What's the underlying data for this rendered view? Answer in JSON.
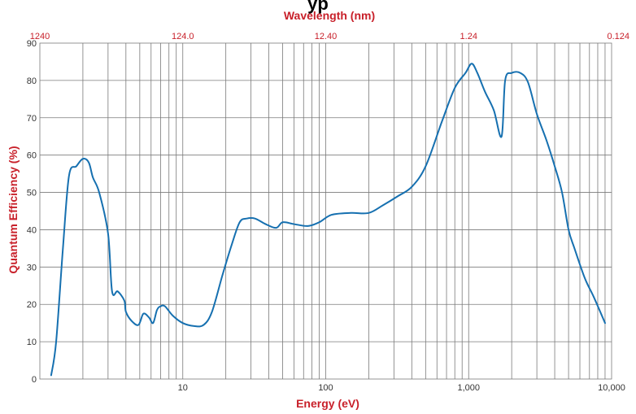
{
  "chart_data": {
    "type": "line",
    "title_visible": "yp",
    "xlabel": "Energy (eV)",
    "x2label": "Wavelength (nm)",
    "ylabel": "Quantum Efficiency (%)",
    "x_scale": "log",
    "xlim": [
      1,
      10000
    ],
    "ylim": [
      0,
      90
    ],
    "grid": true,
    "x_ticks": [
      {
        "value": 10,
        "label": "10"
      },
      {
        "value": 100,
        "label": "100"
      },
      {
        "value": 1000,
        "label": "1,000"
      },
      {
        "value": 10000,
        "label": "10,000"
      }
    ],
    "x2_ticks": [
      {
        "value": 1,
        "label": "1240"
      },
      {
        "value": 10,
        "label": "124.0"
      },
      {
        "value": 100,
        "label": "12.40"
      },
      {
        "value": 1000,
        "label": "1.24"
      },
      {
        "value": 10000,
        "label": "0.124"
      }
    ],
    "y_ticks": [
      0,
      10,
      20,
      30,
      40,
      50,
      60,
      70,
      80,
      90
    ],
    "series": [
      {
        "color": "#1670b0",
        "x": [
          1.2,
          1.3,
          1.45,
          1.6,
          1.8,
          2.0,
          2.2,
          2.35,
          2.6,
          3.0,
          3.2,
          3.5,
          3.9,
          4.0,
          4.4,
          4.9,
          5.3,
          5.8,
          6.2,
          6.6,
          7.0,
          7.5,
          8.5,
          10,
          12,
          14,
          16,
          19,
          22,
          25,
          28,
          32,
          38,
          45,
          50,
          60,
          75,
          90,
          110,
          150,
          200,
          250,
          320,
          400,
          500,
          650,
          800,
          950,
          1050,
          1150,
          1300,
          1500,
          1700,
          1800,
          2000,
          2300,
          2600,
          3000,
          3500,
          4000,
          4500,
          5000,
          5500,
          6500,
          7500,
          9000
        ],
        "y": [
          1,
          10,
          35,
          54.5,
          57,
          59,
          58,
          54,
          50,
          39,
          23.5,
          23.5,
          21,
          18,
          15.5,
          14.5,
          17.5,
          16.5,
          15,
          18.5,
          19.5,
          19.5,
          17,
          15,
          14.2,
          14.5,
          18,
          28,
          36,
          42,
          43,
          43,
          41.5,
          40.5,
          42,
          41.5,
          41,
          42,
          44,
          44.5,
          44.5,
          46.5,
          49,
          51.5,
          57,
          69,
          78,
          82,
          84.5,
          82,
          77,
          72,
          65,
          80,
          82,
          82,
          79.5,
          71,
          64,
          57,
          50,
          40,
          35,
          27,
          22,
          15
        ]
      }
    ]
  }
}
